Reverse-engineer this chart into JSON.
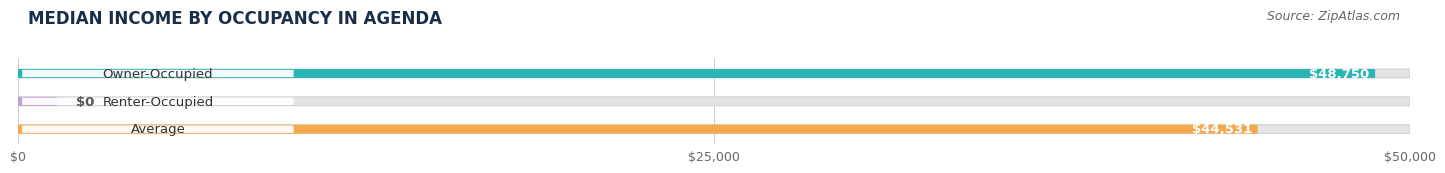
{
  "title": "MEDIAN INCOME BY OCCUPANCY IN AGENDA",
  "source": "Source: ZipAtlas.com",
  "categories": [
    "Owner-Occupied",
    "Renter-Occupied",
    "Average"
  ],
  "values": [
    48750,
    0,
    44531
  ],
  "bar_colors": [
    "#29b5b5",
    "#c0a0d0",
    "#f5a84e"
  ],
  "bar_labels": [
    "$48,750",
    "$0",
    "$44,531"
  ],
  "xlim": [
    0,
    50000
  ],
  "xticks": [
    0,
    25000,
    50000
  ],
  "xtick_labels": [
    "$0",
    "$25,000",
    "$50,000"
  ],
  "bar_bg_color": "#e4e4e4",
  "bar_bg_edge": "#d0d0d0",
  "title_fontsize": 12,
  "source_fontsize": 9,
  "label_fontsize": 9.5,
  "value_fontsize": 9.5,
  "tick_fontsize": 9
}
